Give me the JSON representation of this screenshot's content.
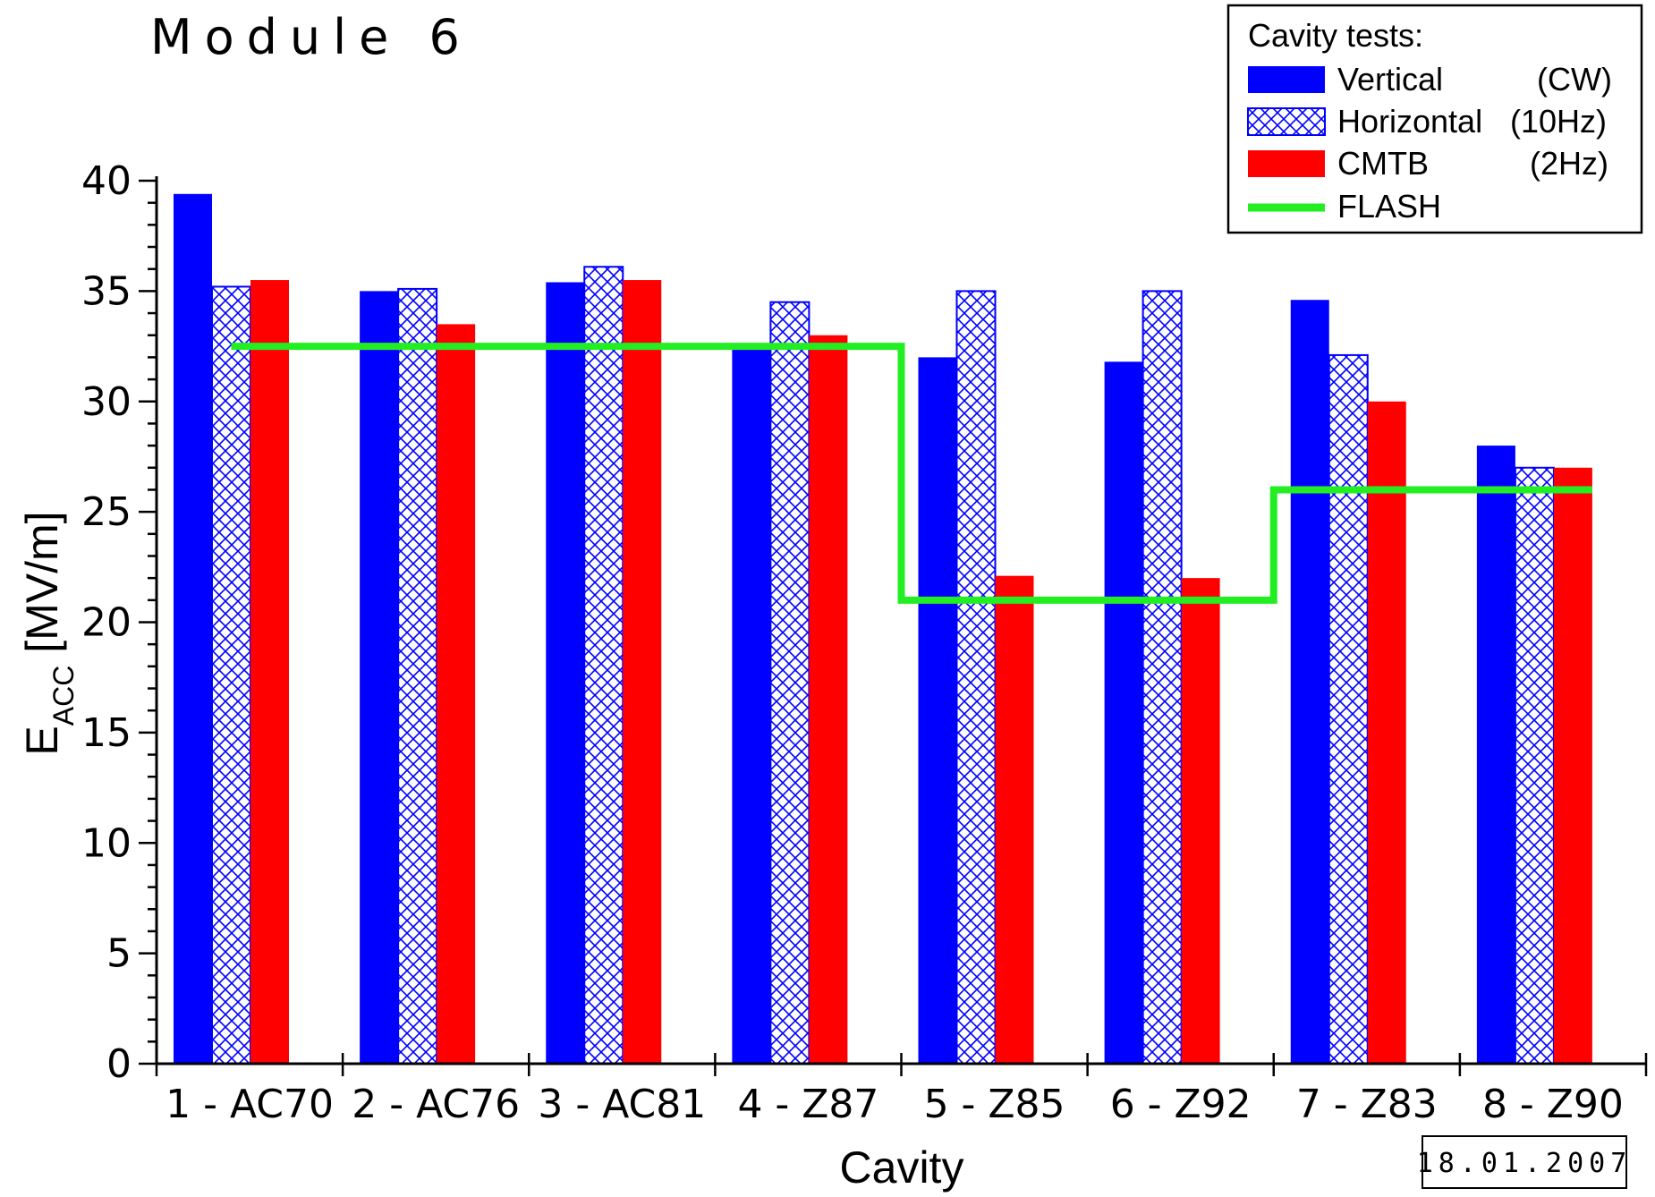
{
  "title": "Module 6",
  "date_stamp": "18.01.2007",
  "legend": {
    "title": "Cavity tests:",
    "entries": [
      {
        "name": "Vertical",
        "note": "(CW)"
      },
      {
        "name": "Horizontal",
        "note": "(10Hz)"
      },
      {
        "name": "CMTB",
        "note": "(2Hz)"
      },
      {
        "name": "FLASH",
        "note": ""
      }
    ]
  },
  "colors": {
    "vertical": "#0000ff",
    "horizontal": "#0000ff",
    "cmtb": "#ff0000",
    "flash": "#22ee22",
    "axis": "#000000"
  },
  "chart_data": {
    "type": "bar",
    "xlabel": "Cavity",
    "ylabel_main": "E",
    "ylabel_sub": "ACC",
    "ylabel_unit": " [MV/m]",
    "ylim": [
      0,
      40
    ],
    "yticks": [
      0,
      5,
      10,
      15,
      20,
      25,
      30,
      35,
      40
    ],
    "categories": [
      "1 - AC70",
      "2 - AC76",
      "3 - AC81",
      "4 - Z87",
      "5 - Z85",
      "6 - Z92",
      "7 - Z83",
      "8 - Z90"
    ],
    "series": [
      {
        "name": "Vertical",
        "values": [
          39.4,
          35.0,
          35.4,
          32.6,
          32.0,
          31.8,
          34.6,
          28.0
        ]
      },
      {
        "name": "Horizontal",
        "values": [
          35.2,
          35.1,
          36.1,
          34.5,
          35.0,
          35.0,
          32.1,
          27.0
        ]
      },
      {
        "name": "CMTB",
        "values": [
          35.5,
          33.5,
          35.5,
          33.0,
          22.1,
          22.0,
          30.0,
          27.0
        ]
      }
    ],
    "line_series": {
      "name": "FLASH",
      "values": [
        32.5,
        32.5,
        32.5,
        32.5,
        21.0,
        21.0,
        26.0,
        26.0
      ]
    },
    "grid": false,
    "legend_position": "top-right"
  }
}
